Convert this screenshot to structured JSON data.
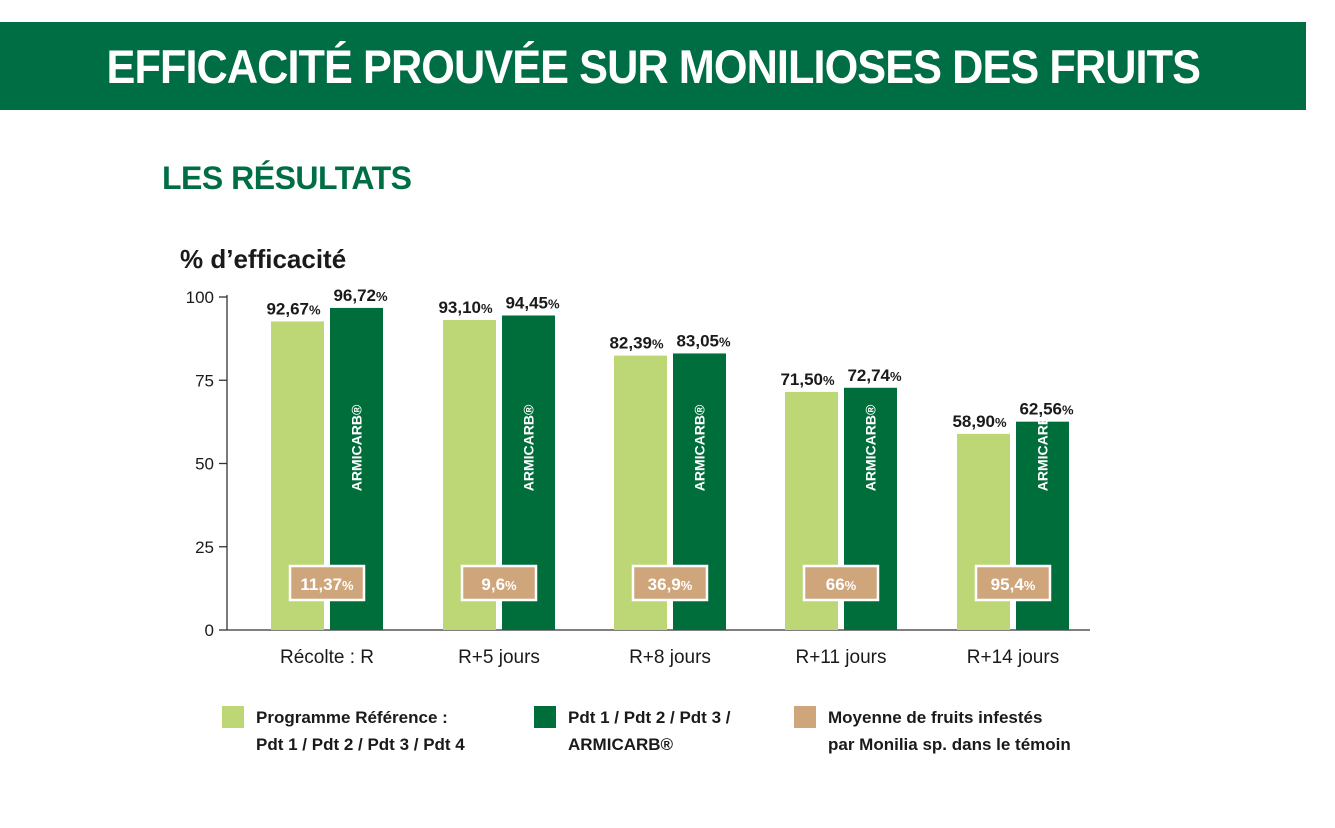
{
  "header": {
    "title": "EFFICACITÉ PROUVÉE SUR MONILIOSES DES FRUITS"
  },
  "section": {
    "title": "LES RÉSULTATS"
  },
  "colors": {
    "banner": "#006e44",
    "reference": "#bdd776",
    "armicarb": "#006e3b",
    "moyenne": "#cfa67c",
    "box_text": "#ffffff"
  },
  "chart_data": {
    "type": "bar",
    "ylabel": "% d’efficacité",
    "ylim": [
      0,
      100
    ],
    "yticks": [
      "0",
      "25",
      "50",
      "75",
      "100"
    ],
    "categories": [
      "Récolte : R",
      "R+5 jours",
      "R+8 jours",
      "R+11 jours",
      "R+14 jours"
    ],
    "series": [
      {
        "name": "Programme Référence : Pdt 1 / Pdt 2 / Pdt 3 / Pdt 4",
        "values": [
          92.67,
          93.1,
          82.39,
          71.5,
          58.9
        ],
        "labels": [
          "92,67",
          "93,10",
          "82,39",
          "71,50",
          "58,90"
        ]
      },
      {
        "name": "Pdt 1 / Pdt 2 / Pdt 3 / ARMICARB®",
        "values": [
          96.72,
          94.45,
          83.05,
          72.74,
          62.56
        ],
        "labels": [
          "96,72",
          "94,45",
          "83,05",
          "72,74",
          "62,56"
        ],
        "bar_text": "ARMICARB®"
      }
    ],
    "moyenne": {
      "name": "Moyenne de fruits infestés par Monilia sp. dans le témoin",
      "values": [
        11.37,
        9.6,
        36.9,
        66,
        95.4
      ],
      "labels": [
        "11,37",
        "9,6",
        "36,9",
        "66",
        "95,4"
      ]
    },
    "percent_sign": "%",
    "legend_position": "bottom"
  },
  "legend": {
    "items": [
      {
        "line1": "Programme Référence :",
        "line2": "Pdt 1 / Pdt 2 / Pdt 3 / Pdt 4"
      },
      {
        "line1": "Pdt 1 / Pdt 2 / Pdt 3 /",
        "line2": "ARMICARB®"
      },
      {
        "line1": "Moyenne de fruits infestés",
        "line2": "par Monilia sp. dans le témoin"
      }
    ]
  }
}
